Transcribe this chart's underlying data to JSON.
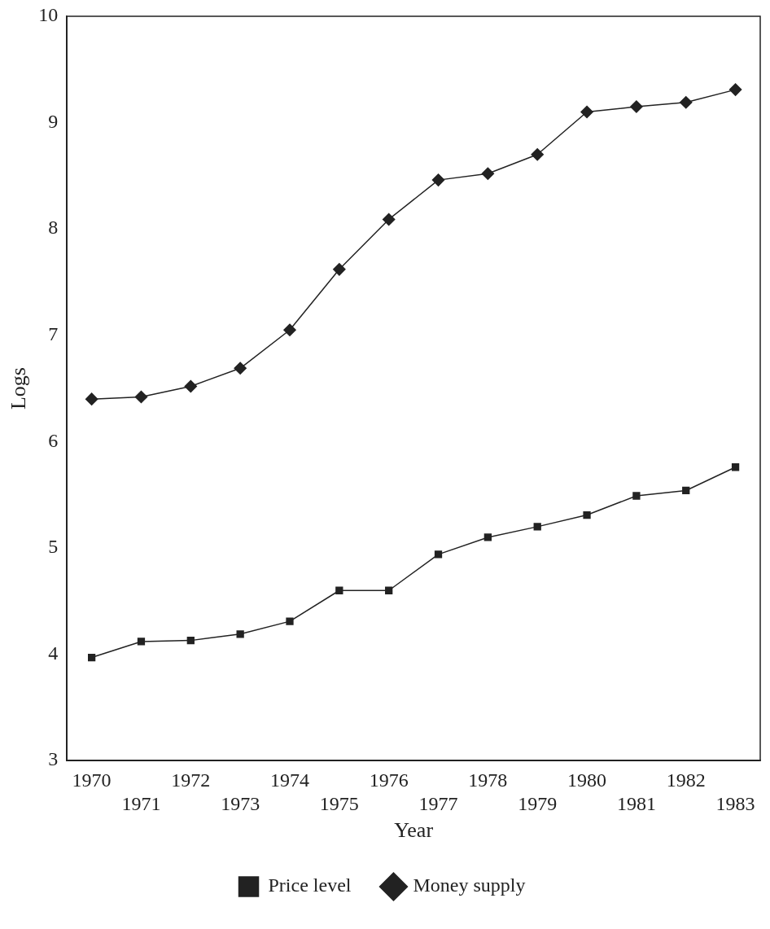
{
  "chart_data": {
    "type": "line",
    "xlabel": "Year",
    "ylabel": "Logs",
    "categories": [
      "1970",
      "1971",
      "1972",
      "1973",
      "1974",
      "1975",
      "1976",
      "1977",
      "1978",
      "1979",
      "1980",
      "1981",
      "1982",
      "1983"
    ],
    "series": [
      {
        "name": "Price level",
        "color": "#222222",
        "marker": "square",
        "values": [
          3.97,
          4.12,
          4.13,
          4.19,
          4.31,
          4.6,
          4.6,
          4.94,
          5.1,
          5.2,
          5.31,
          5.49,
          5.54,
          5.76
        ]
      },
      {
        "name": "Money supply",
        "color": "#222222",
        "marker": "diamond",
        "values": [
          6.4,
          6.42,
          6.52,
          6.69,
          7.05,
          7.62,
          8.09,
          8.46,
          8.52,
          8.7,
          9.1,
          9.15,
          9.19,
          9.31
        ]
      }
    ],
    "ylim": [
      3,
      10
    ],
    "yticks": [
      3,
      4,
      5,
      6,
      7,
      8,
      9,
      10
    ],
    "grid": false,
    "legend": "bottom",
    "line_style": "solid"
  }
}
